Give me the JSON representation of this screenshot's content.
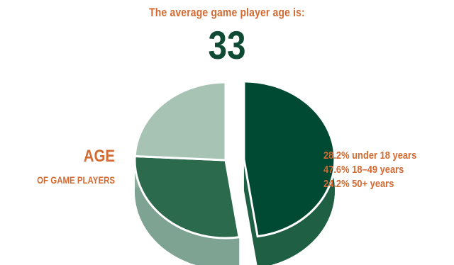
{
  "header": {
    "headline": "The average game player age is:",
    "average_age": "33"
  },
  "side_label": {
    "title": "AGE",
    "subtitle": "OF GAME PLAYERS"
  },
  "legend": [
    {
      "percent": "28.2%",
      "label": "under 18 years"
    },
    {
      "percent": "47.6%",
      "label": "18–49 years"
    },
    {
      "percent": "24.2%",
      "label": "50+ years"
    }
  ],
  "chart_data": {
    "type": "pie",
    "title": "AGE",
    "subtitle": "OF GAME PLAYERS",
    "categories": [
      "under 18 years",
      "18–49 years",
      "50+ years"
    ],
    "values": [
      28.2,
      47.6,
      24.2
    ],
    "colors": [
      "#2b6a4d",
      "#004a33",
      "#a6c3b4"
    ],
    "side_colors": [
      "#7fa393",
      "#1f5f44",
      "#8bab9b"
    ],
    "exploded_slice": "18–49 years",
    "three_d": true,
    "legend_position": "right"
  }
}
